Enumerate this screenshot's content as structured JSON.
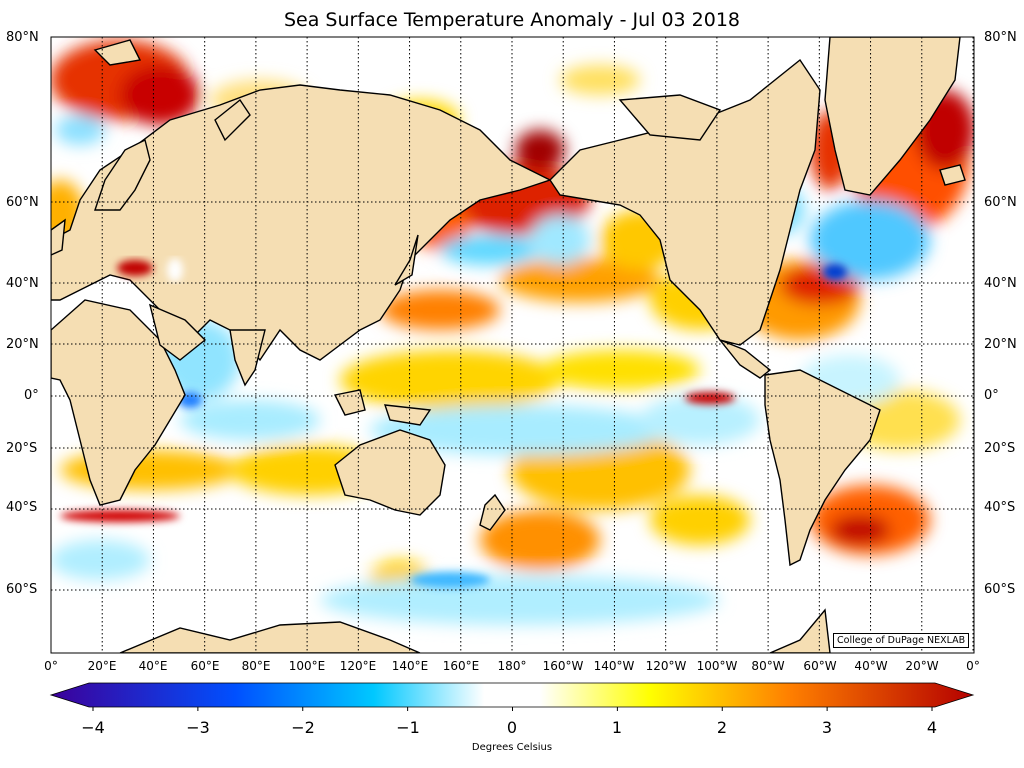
{
  "title": "Sea Surface Temperature Anomaly - Jul 03 2018",
  "credit": "College of DuPage NEXLAB",
  "colorbar": {
    "label": "Degrees Celsius",
    "ticks": [
      "−4",
      "−3",
      "−2",
      "−1",
      "0",
      "1",
      "2",
      "3",
      "4"
    ],
    "min": -4,
    "max": 4,
    "colors": [
      "#3d0099",
      "#0050ff",
      "#00c8ff",
      "#ffffff",
      "#ffff00",
      "#ff8000",
      "#b40000"
    ]
  },
  "lat_labels_left": [
    "80°N",
    "60°N",
    "40°N",
    "20°N",
    "0°",
    "20°S",
    "40°S",
    "60°S"
  ],
  "lat_labels_right": [
    "80°N",
    "60°N",
    "40°N",
    "20°N",
    "0°",
    "20°S",
    "40°S",
    "60°S"
  ],
  "lon_labels": [
    "0°",
    "20°E",
    "40°E",
    "60°E",
    "80°E",
    "100°E",
    "120°E",
    "140°E",
    "160°E",
    "180°",
    "160°W",
    "140°W",
    "120°W",
    "100°W",
    "80°W",
    "60°W",
    "40°W",
    "20°W",
    "0°"
  ],
  "colors": {
    "land": "#f5deb3",
    "coast": "#000000",
    "warm": "#ff9900",
    "hot": "#b40000",
    "cool": "#9ee9ff"
  }
}
